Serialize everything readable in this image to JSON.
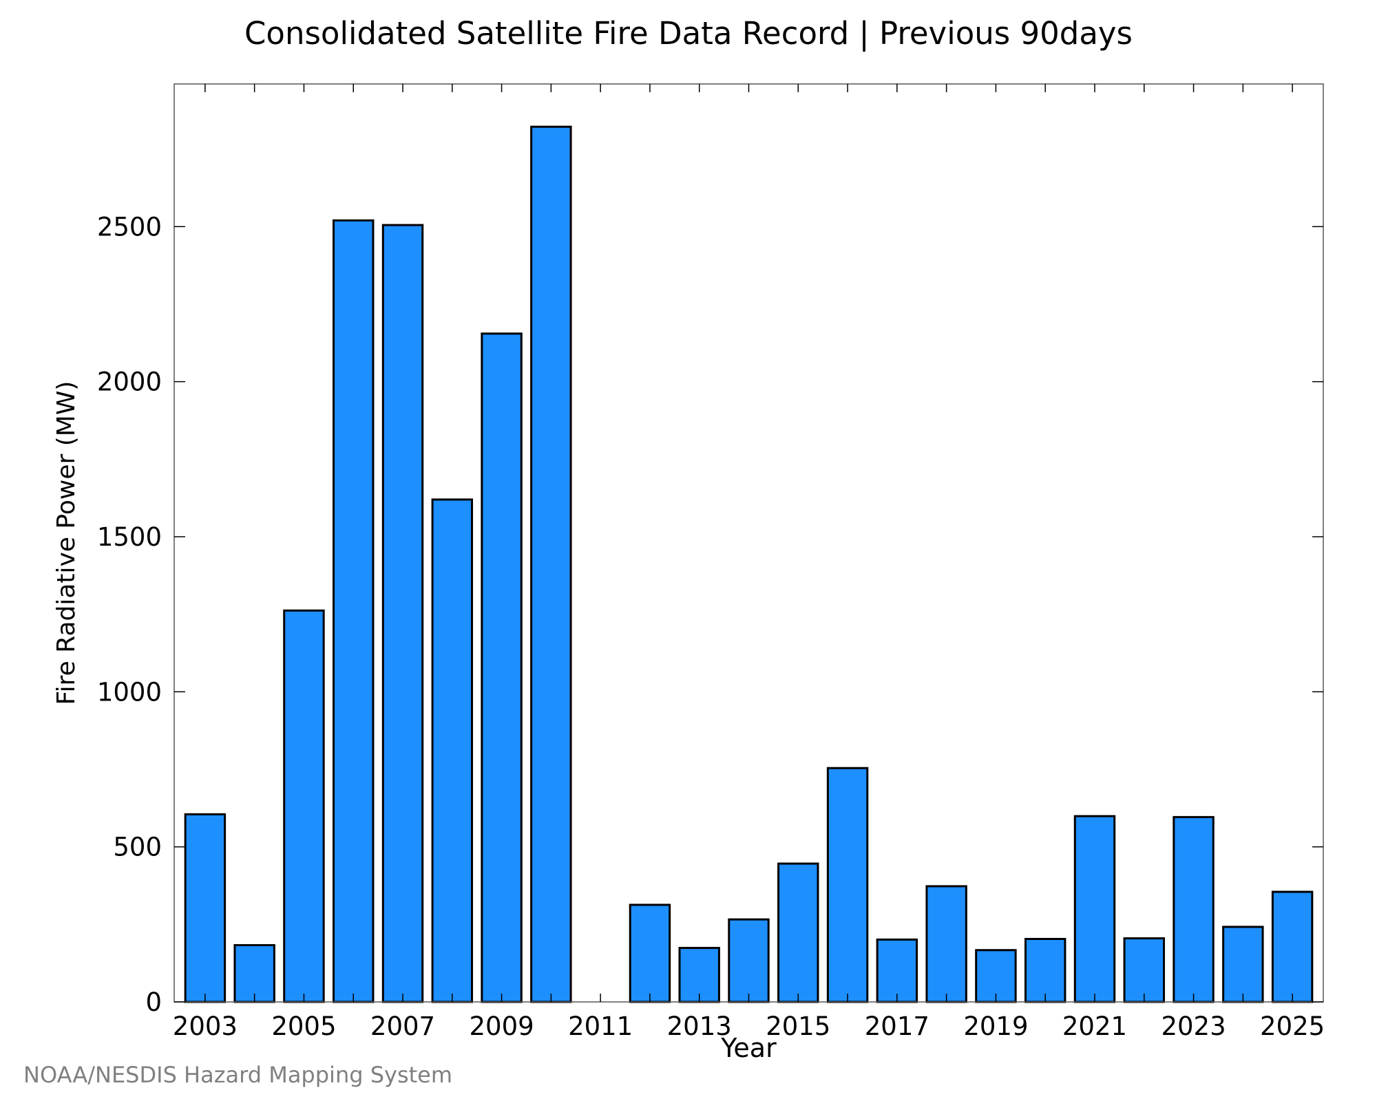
{
  "footer": "NOAA/NESDIS Hazard Mapping System",
  "colors": {
    "bar_fill": "#1e8fff",
    "bar_stroke": "#000000",
    "axis": "#000000",
    "footer_text": "#808080"
  },
  "chart_data": {
    "type": "bar",
    "title": "Consolidated Satellite Fire Data Record | Previous 90days",
    "xlabel": "Year",
    "ylabel": "Fire Radiative Power (MW)",
    "categories": [
      "2003",
      "2004",
      "2005",
      "2006",
      "2007",
      "2008",
      "2009",
      "2010",
      "2011",
      "2012",
      "2013",
      "2014",
      "2015",
      "2016",
      "2017",
      "2018",
      "2019",
      "2020",
      "2021",
      "2022",
      "2023",
      "2024",
      "2025"
    ],
    "values": [
      605,
      183,
      1262,
      2520,
      2505,
      1620,
      2155,
      2822,
      0,
      313,
      174,
      266,
      446,
      754,
      201,
      373,
      167,
      203,
      599,
      205,
      596,
      242,
      355
    ],
    "xticks": [
      "2003",
      "2005",
      "2007",
      "2009",
      "2011",
      "2013",
      "2015",
      "2017",
      "2019",
      "2021",
      "2023",
      "2025"
    ],
    "yticks": [
      0,
      500,
      1000,
      1500,
      2000,
      2500
    ],
    "ylim": [
      0,
      2960
    ],
    "grid": false,
    "legend": "none"
  }
}
